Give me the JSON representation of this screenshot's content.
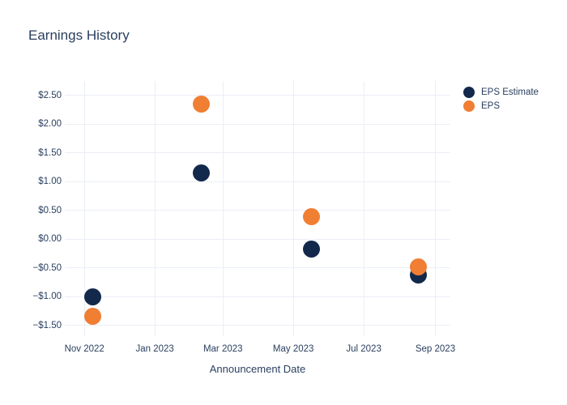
{
  "chart_data": {
    "type": "scatter",
    "title": "Earnings History",
    "xlabel": "Announcement Date",
    "ylabel": "",
    "grid": true,
    "legend_position": "top-right-outside",
    "x_range": [
      "2022-10-15",
      "2023-09-14"
    ],
    "y_range": [
      -1.69,
      2.75
    ],
    "x_ticks": [
      {
        "date": "2022-11-01",
        "label": "Nov 2022"
      },
      {
        "date": "2023-01-01",
        "label": "Jan 2023"
      },
      {
        "date": "2023-03-01",
        "label": "Mar 2023"
      },
      {
        "date": "2023-05-01",
        "label": "May 2023"
      },
      {
        "date": "2023-07-01",
        "label": "Jul 2023"
      },
      {
        "date": "2023-09-01",
        "label": "Sep 2023"
      }
    ],
    "y_ticks": [
      {
        "value": 2.5,
        "label": "$2.50"
      },
      {
        "value": 2.0,
        "label": "$2.00"
      },
      {
        "value": 1.5,
        "label": "$1.50"
      },
      {
        "value": 1.0,
        "label": "$1.00"
      },
      {
        "value": 0.5,
        "label": "$0.50"
      },
      {
        "value": 0.0,
        "label": "$0.00"
      },
      {
        "value": -0.5,
        "label": "−$0.50"
      },
      {
        "value": -1.0,
        "label": "−$1.00"
      },
      {
        "value": -1.5,
        "label": "−$1.50"
      }
    ],
    "series": [
      {
        "name": "EPS Estimate",
        "color": "#13294b",
        "points": [
          {
            "date": "2022-11-08",
            "value": -1.0
          },
          {
            "date": "2023-02-10",
            "value": 1.15
          },
          {
            "date": "2023-05-17",
            "value": -0.18
          },
          {
            "date": "2023-08-17",
            "value": -0.62
          }
        ]
      },
      {
        "name": "EPS",
        "color": "#f07e33",
        "points": [
          {
            "date": "2022-11-08",
            "value": -1.35
          },
          {
            "date": "2023-02-10",
            "value": 2.35
          },
          {
            "date": "2023-05-17",
            "value": 0.39
          },
          {
            "date": "2023-08-17",
            "value": -0.49
          }
        ]
      }
    ]
  }
}
